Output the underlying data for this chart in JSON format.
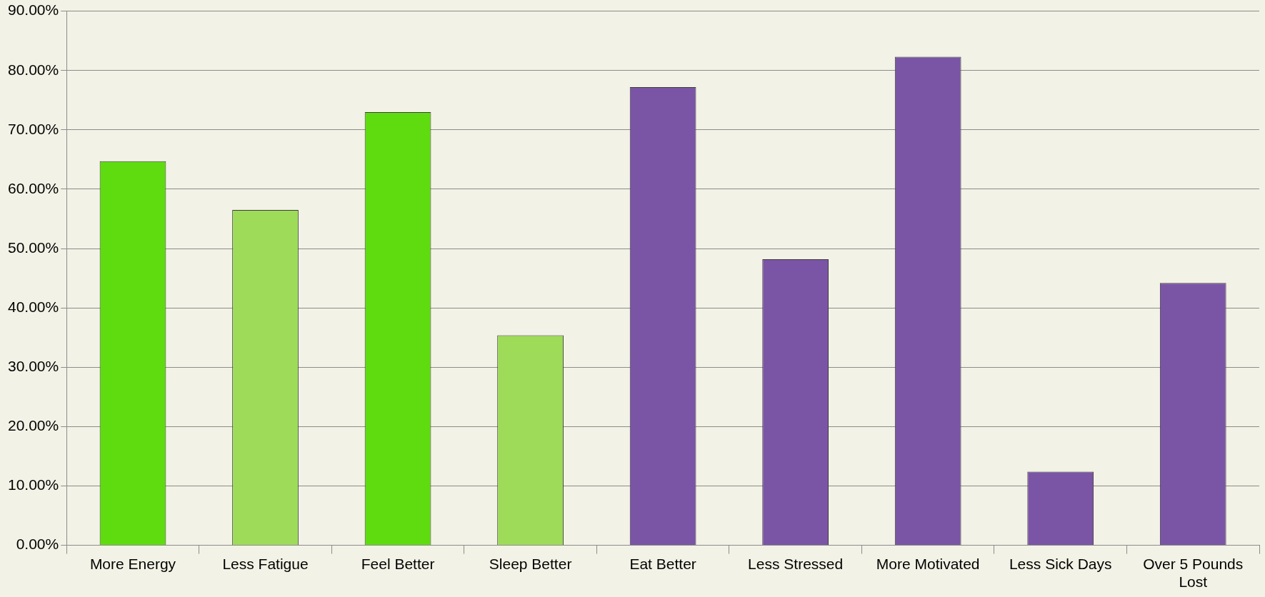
{
  "chart_data": {
    "type": "bar",
    "categories": [
      "More Energy",
      "Less Fatigue",
      "Feel Better",
      "Sleep Better",
      "Eat Better",
      "Less Stressed",
      "More Motivated",
      "Less Sick Days",
      "Over 5 Pounds Lost"
    ],
    "values": [
      64.7,
      56.5,
      73.0,
      35.4,
      77.2,
      48.2,
      82.3,
      12.4,
      44.2
    ],
    "colors": [
      "#5fdc0f",
      "#9edb58",
      "#5fdc0f",
      "#9edb58",
      "#7b55a5",
      "#7b55a5",
      "#7b55a5",
      "#7b55a5",
      "#7b55a5"
    ],
    "ylim": [
      0,
      90
    ],
    "yticks": [
      {
        "value": 0,
        "label": "0.00%"
      },
      {
        "value": 10,
        "label": "10.00%"
      },
      {
        "value": 20,
        "label": "20.00%"
      },
      {
        "value": 30,
        "label": "30.00%"
      },
      {
        "value": 40,
        "label": "40.00%"
      },
      {
        "value": 50,
        "label": "50.00%"
      },
      {
        "value": 60,
        "label": "60.00%"
      },
      {
        "value": 70,
        "label": "70.00%"
      },
      {
        "value": 80,
        "label": "80.00%"
      },
      {
        "value": 90,
        "label": "90.00%"
      }
    ],
    "grid": "y"
  }
}
